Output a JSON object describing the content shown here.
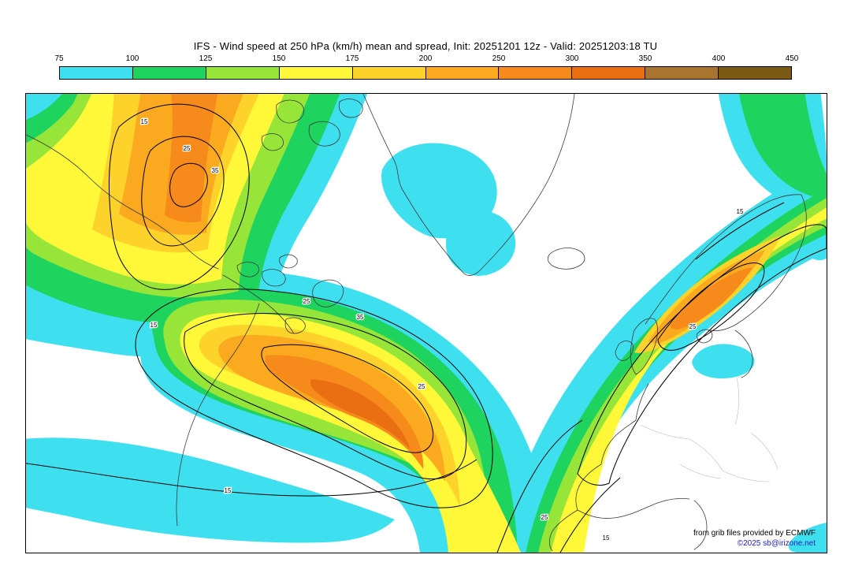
{
  "title": "IFS - Wind speed at 250 hPa (km/h) mean and spread, Init: 20251201 12z - Valid: 20251203:18 TU",
  "colorbar": {
    "tick_labels": [
      "75",
      "100",
      "125",
      "150",
      "175",
      "200",
      "250",
      "300",
      "350",
      "400",
      "450"
    ],
    "segment_colors": [
      "#3ee0ef",
      "#1fd35f",
      "#97e538",
      "#fef838",
      "#fdd32b",
      "#fbaa1f",
      "#f68a1b",
      "#e96f12",
      "#a8742e",
      "#7c5a13"
    ]
  },
  "map": {
    "contour_labels": [
      "15",
      "25",
      "35"
    ],
    "credits_line1": "from grib files provided by ECMWF",
    "credits_line2": "©2025 sb@irizone.net"
  },
  "chart_data": {
    "type": "heatmap",
    "model": "IFS",
    "variable": "Wind speed at 250 hPa (km/h) mean and spread",
    "init": "20251201 12z",
    "valid": "20251203:18 TU",
    "fill_levels_kmh": [
      75,
      100,
      125,
      150,
      175,
      200,
      250,
      300,
      350,
      400,
      450
    ],
    "fill_colors": [
      "#3ee0ef",
      "#1fd35f",
      "#97e538",
      "#fef838",
      "#fdd32b",
      "#fbaa1f",
      "#f68a1b",
      "#e96f12",
      "#a8742e",
      "#7c5a13"
    ],
    "spread_contour_levels_kmh": [
      15,
      25,
      35
    ],
    "legend_position": "top",
    "credit": "from grib files provided by ECMWF"
  }
}
